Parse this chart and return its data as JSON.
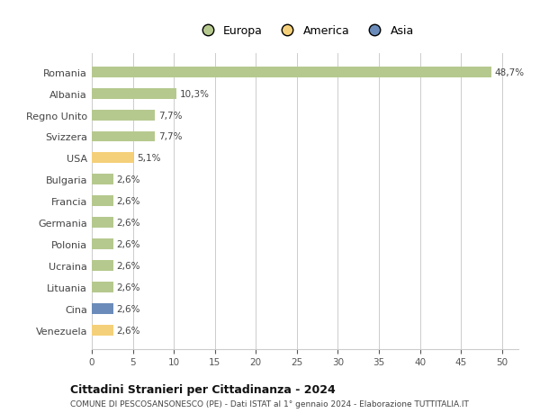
{
  "countries": [
    "Romania",
    "Albania",
    "Regno Unito",
    "Svizzera",
    "USA",
    "Bulgaria",
    "Francia",
    "Germania",
    "Polonia",
    "Ucraina",
    "Lituania",
    "Cina",
    "Venezuela"
  ],
  "values": [
    48.7,
    10.3,
    7.7,
    7.7,
    5.1,
    2.6,
    2.6,
    2.6,
    2.6,
    2.6,
    2.6,
    2.6,
    2.6
  ],
  "labels": [
    "48,7%",
    "10,3%",
    "7,7%",
    "7,7%",
    "5,1%",
    "2,6%",
    "2,6%",
    "2,6%",
    "2,6%",
    "2,6%",
    "2,6%",
    "2,6%",
    "2,6%"
  ],
  "colors": [
    "#b5c98e",
    "#b5c98e",
    "#b5c98e",
    "#b5c98e",
    "#f5d07a",
    "#b5c98e",
    "#b5c98e",
    "#b5c98e",
    "#b5c98e",
    "#b5c98e",
    "#b5c98e",
    "#6b8cba",
    "#f5d07a"
  ],
  "legend": [
    {
      "label": "Europa",
      "color": "#b5c98e"
    },
    {
      "label": "America",
      "color": "#f5d07a"
    },
    {
      "label": "Asia",
      "color": "#6b8cba"
    }
  ],
  "xlim": [
    0,
    52
  ],
  "xticks": [
    0,
    5,
    10,
    15,
    20,
    25,
    30,
    35,
    40,
    45,
    50
  ],
  "title": "Cittadini Stranieri per Cittadinanza - 2024",
  "subtitle": "COMUNE DI PESCOSANSONESCO (PE) - Dati ISTAT al 1° gennaio 2024 - Elaborazione TUTTITALIA.IT",
  "background_color": "#ffffff",
  "grid_color": "#cccccc",
  "bar_height": 0.5
}
